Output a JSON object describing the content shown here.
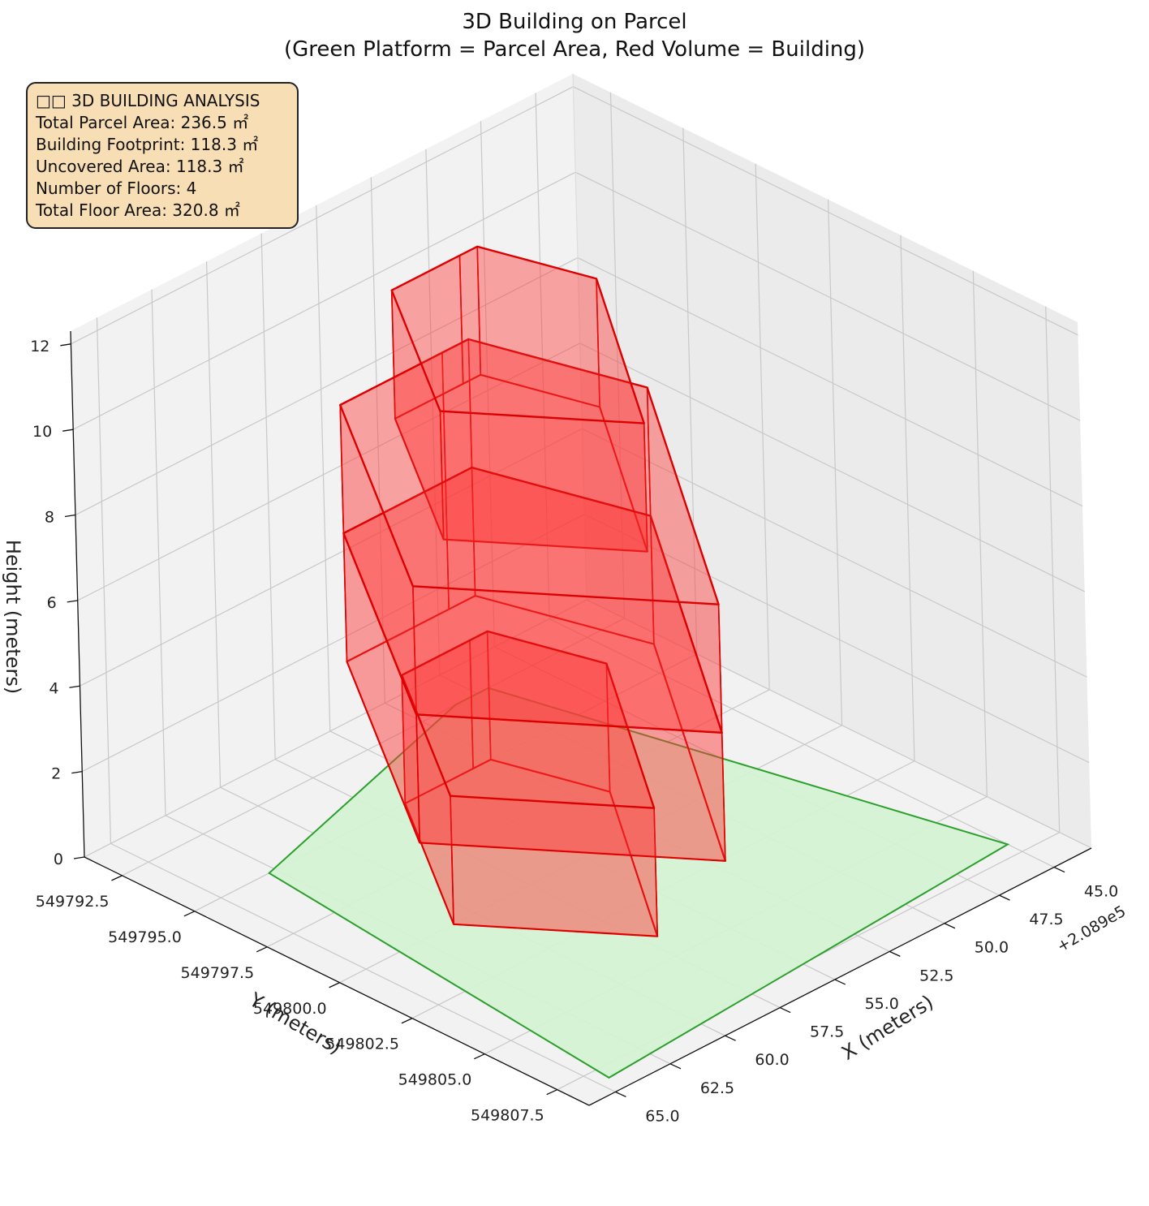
{
  "title": "3D Building on Parcel",
  "subtitle": "(Green Platform = Parcel Area, Red Volume = Building)",
  "info_box": {
    "heading": "□□ 3D BUILDING ANALYSIS",
    "lines": [
      "Total Parcel Area: 236.5 ㎡",
      "Building Footprint: 118.3 ㎡",
      "Uncovered Area: 118.3 ㎡",
      "Number of Floors: 4",
      "Total Floor Area: 320.8 ㎡"
    ]
  },
  "chart_data": {
    "type": "3d-extruded-polygons",
    "title": "3D Building on Parcel",
    "subtitle": "(Green Platform = Parcel Area, Red Volume = Building)",
    "xlabel": "X (meters)",
    "ylabel": "Y (meters)",
    "zlabel": "Height (meters)",
    "x_offset_label": "+2.089e5",
    "x_ticks": [
      "45.0",
      "47.5",
      "50.0",
      "52.5",
      "55.0",
      "57.5",
      "60.0",
      "62.5",
      "65.0"
    ],
    "y_ticks": [
      "549792.5",
      "549795.0",
      "549797.5",
      "549800.0",
      "549802.5",
      "549805.0",
      "549807.5"
    ],
    "z_ticks": [
      "0",
      "2",
      "4",
      "6",
      "8",
      "10",
      "12"
    ],
    "xlim": [
      43.3,
      66.2
    ],
    "ylim": [
      549791.2,
      549808.6
    ],
    "zlim": [
      0,
      12.3
    ],
    "grid": true,
    "colors": {
      "parcel_fill": "#d4f2d4",
      "parcel_edge": "#2ca02c",
      "building_fill": "#ff3b3b",
      "building_edge": "#dd0000"
    },
    "parcel": {
      "name": "Parcel Area",
      "z": 0,
      "vertices": [
        [
          49.5,
          549792.5
        ],
        [
          45.0,
          549807.0
        ],
        [
          64.5,
          549808.0
        ],
        [
          62.8,
          549795.0
        ],
        [
          51.0,
          549792.5
        ]
      ]
    },
    "building": {
      "name": "Building",
      "footprint": [
        [
          52.7,
          549795.0
        ],
        [
          51.5,
          549798.2
        ],
        [
          57.0,
          549804.0
        ],
        [
          61.0,
          549800.0
        ],
        [
          56.6,
          549795.0
        ],
        [
          53.5,
          549795.0
        ]
      ],
      "levels": [
        {
          "z0": 0.0,
          "z1": 3.0,
          "scale": 1.0
        },
        {
          "z0": 3.0,
          "z1": 6.0,
          "scale": 1.5
        },
        {
          "z0": 6.0,
          "z1": 9.0,
          "scale": 1.5
        },
        {
          "z0": 9.0,
          "z1": 12.0,
          "scale": 1.0
        }
      ]
    }
  }
}
